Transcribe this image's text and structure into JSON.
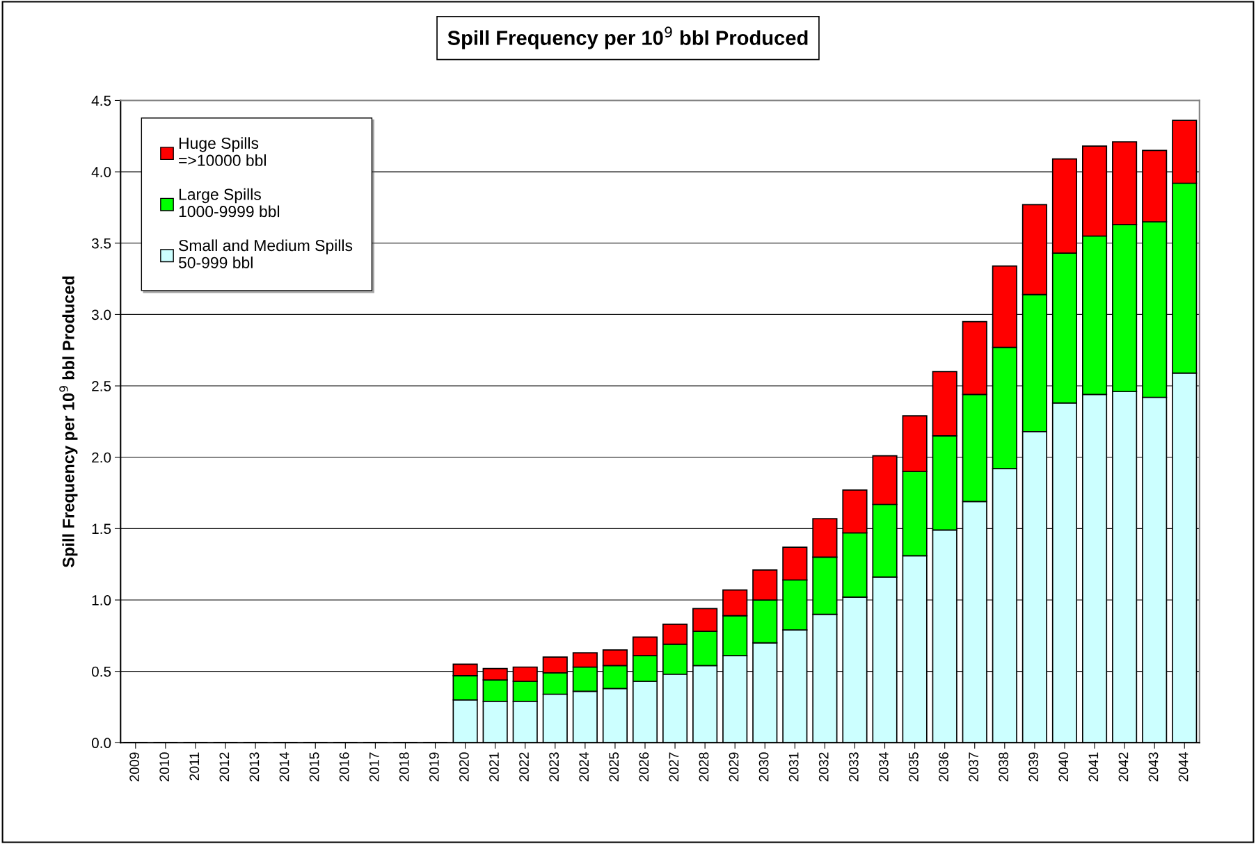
{
  "chart_data": {
    "type": "bar",
    "stacked": true,
    "title": "Spill Frequency per 10$^{9}$ bbl Produced",
    "ylabel": "Spill Frequency per 10$^{9}$ bbl Produced",
    "categories": [
      "2009",
      "2010",
      "2011",
      "2012",
      "2013",
      "2014",
      "2015",
      "2016",
      "2017",
      "2018",
      "2019",
      "2020",
      "2021",
      "2022",
      "2023",
      "2024",
      "2025",
      "2026",
      "2027",
      "2028",
      "2029",
      "2030",
      "2031",
      "2032",
      "2033",
      "2034",
      "2035",
      "2036",
      "2037",
      "2038",
      "2039",
      "2040",
      "2041",
      "2042",
      "2043",
      "2044"
    ],
    "series": [
      {
        "name": "Small and Medium Spills\n50-999 bbl",
        "color": "#ccffff",
        "values": [
          0,
          0,
          0,
          0,
          0,
          0,
          0,
          0,
          0,
          0,
          0,
          0.3,
          0.29,
          0.29,
          0.34,
          0.36,
          0.38,
          0.43,
          0.48,
          0.54,
          0.61,
          0.7,
          0.79,
          0.9,
          1.02,
          1.16,
          1.31,
          1.49,
          1.69,
          1.92,
          2.18,
          2.38,
          2.44,
          2.46,
          2.42,
          2.59
        ]
      },
      {
        "name": "Large Spills\n1000-9999 bbl",
        "color": "#00ff00",
        "values": [
          0,
          0,
          0,
          0,
          0,
          0,
          0,
          0,
          0,
          0,
          0,
          0.17,
          0.15,
          0.14,
          0.15,
          0.17,
          0.16,
          0.18,
          0.21,
          0.24,
          0.28,
          0.3,
          0.35,
          0.4,
          0.45,
          0.51,
          0.59,
          0.66,
          0.75,
          0.85,
          0.96,
          1.05,
          1.11,
          1.17,
          1.23,
          1.33
        ]
      },
      {
        "name": "Huge Spills\n=>10000 bbl",
        "color": "#ff0000",
        "values": [
          0,
          0,
          0,
          0,
          0,
          0,
          0,
          0,
          0,
          0,
          0,
          0.08,
          0.08,
          0.1,
          0.11,
          0.1,
          0.11,
          0.13,
          0.14,
          0.16,
          0.18,
          0.21,
          0.23,
          0.27,
          0.3,
          0.34,
          0.39,
          0.45,
          0.51,
          0.57,
          0.63,
          0.66,
          0.63,
          0.58,
          0.5,
          0.44
        ]
      }
    ],
    "ylim": [
      0,
      4.5
    ],
    "yticks": [
      {
        "value": 0,
        "label": "0.0"
      },
      {
        "value": 0.5,
        "label": "0.5"
      },
      {
        "value": 1,
        "label": "1.0"
      },
      {
        "value": 1.5,
        "label": "1.5"
      },
      {
        "value": 2,
        "label": "2.0"
      },
      {
        "value": 2.5,
        "label": "2.5"
      },
      {
        "value": 3,
        "label": "3.0"
      },
      {
        "value": 3.5,
        "label": "3.5"
      },
      {
        "value": 4,
        "label": "4.0"
      },
      {
        "value": 4.5,
        "label": "4.5"
      }
    ],
    "grid": "y",
    "legend": "top left"
  }
}
